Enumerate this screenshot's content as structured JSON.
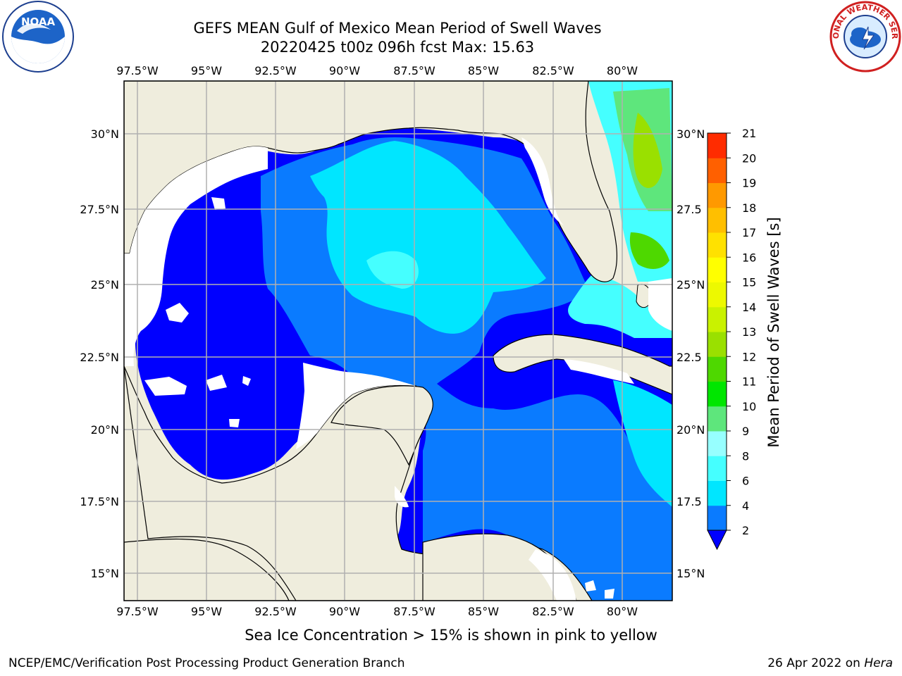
{
  "header": {
    "title_line1": "GEFS MEAN Gulf of Mexico Mean Period of Swell Waves",
    "title_line2": "20220425 t00z 096h fcst   Max: 15.63"
  },
  "logos": {
    "left": {
      "name": "noaa-logo",
      "text": "NOAA"
    },
    "right": {
      "name": "nws-logo",
      "text": "NATIONAL WEATHER SERVICE"
    }
  },
  "map": {
    "lon_labels": [
      "97.5°W",
      "95°W",
      "92.5°W",
      "90°W",
      "87.5°W",
      "85°W",
      "82.5°W",
      "80°W"
    ],
    "lat_labels_left": [
      "30°N",
      "27.5°N",
      "25°N",
      "22.5°N",
      "20°N",
      "17.5°N",
      "15°N"
    ],
    "lat_labels_right": [
      "30°N",
      "27.5",
      "25°N",
      "22.5",
      "20°N",
      "17.5",
      "15°N"
    ],
    "land_color": "#efeddd",
    "grid_color": "#b0b0b0"
  },
  "colorbar": {
    "label": "Mean Period of Swell Waves [s]",
    "ticks": [
      "2",
      "4",
      "6",
      "8",
      "9",
      "10",
      "11",
      "12",
      "13",
      "14",
      "15",
      "16",
      "17",
      "18",
      "19",
      "20",
      "21"
    ],
    "colors": [
      "#0a7bff",
      "#00e6ff",
      "#45ffff",
      "#97ffff",
      "#5ee67c",
      "#00e600",
      "#4ed800",
      "#9ae000",
      "#c9f200",
      "#edf900",
      "#ffff00",
      "#ffe100",
      "#ffbf00",
      "#ff9900",
      "#ff6000",
      "#ff2c00"
    ],
    "under_color": "#0000ff"
  },
  "note": "Sea Ice Concentration > 15% is shown in pink to yellow",
  "footer": {
    "left": "NCEP/EMC/Verification Post Processing Product Generation Branch",
    "right_date": "26 Apr 2022 on ",
    "right_host": "Hera"
  }
}
